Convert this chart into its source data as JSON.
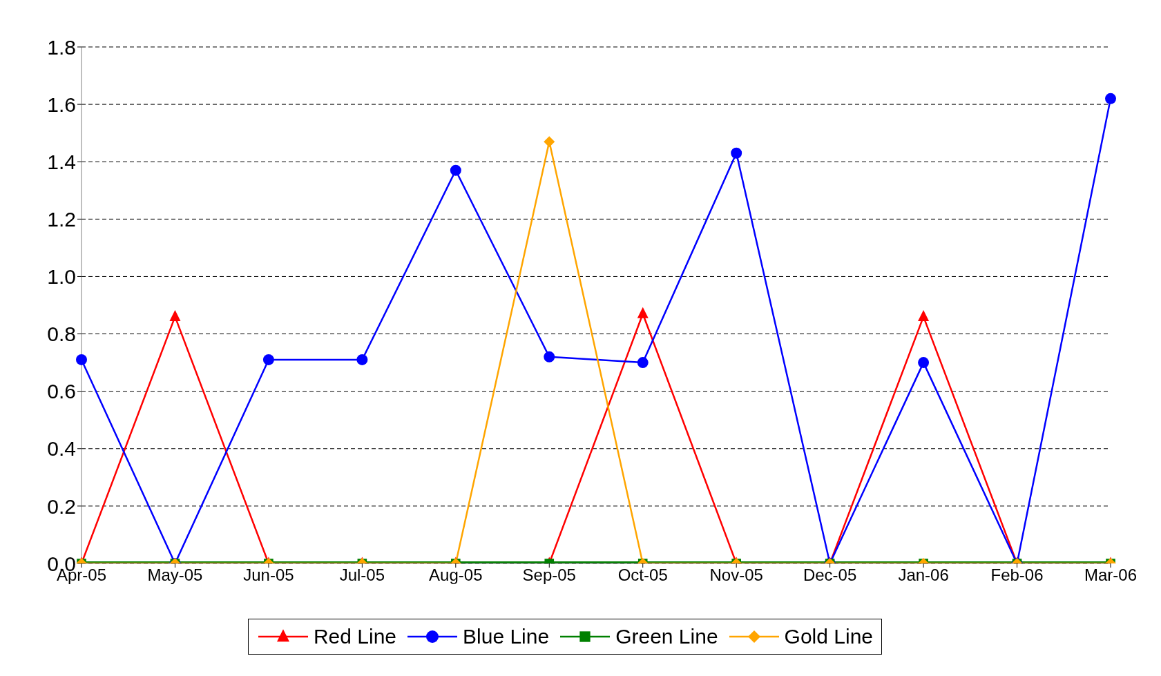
{
  "chart_data": {
    "type": "line",
    "categories": [
      "Apr-05",
      "May-05",
      "Jun-05",
      "Jul-05",
      "Aug-05",
      "Sep-05",
      "Oct-05",
      "Nov-05",
      "Dec-05",
      "Jan-06",
      "Feb-06",
      "Mar-06"
    ],
    "series": [
      {
        "name": "Red Line",
        "color": "#ff0000",
        "marker": "triangle",
        "values": [
          0,
          0.86,
          0,
          0,
          0,
          0,
          0.87,
          0,
          0,
          0.86,
          0,
          0
        ]
      },
      {
        "name": "Blue Line",
        "color": "#0000ff",
        "marker": "circle",
        "values": [
          0.71,
          0,
          0.71,
          0.71,
          1.37,
          0.72,
          0.7,
          1.43,
          0,
          0.7,
          0,
          1.62
        ]
      },
      {
        "name": "Green Line",
        "color": "#008000",
        "marker": "square",
        "values": [
          0,
          0,
          0,
          0,
          0,
          0,
          0,
          0,
          0,
          0,
          0,
          0
        ]
      },
      {
        "name": "Gold Line",
        "color": "#ffa500",
        "marker": "diamond",
        "values": [
          0,
          0,
          0,
          0,
          0,
          1.47,
          0,
          0,
          0,
          0,
          0,
          0
        ]
      }
    ],
    "ylim": [
      0,
      1.8
    ],
    "yticks": [
      {
        "value": 0,
        "label": "0.0"
      },
      {
        "value": 0.2,
        "label": "0.2"
      },
      {
        "value": 0.4,
        "label": "0.4"
      },
      {
        "value": 0.6,
        "label": "0.6"
      },
      {
        "value": 0.8,
        "label": "0.8"
      },
      {
        "value": 1.0,
        "label": "1.0"
      },
      {
        "value": 1.2,
        "label": "1.2"
      },
      {
        "value": 1.4,
        "label": "1.4"
      },
      {
        "value": 1.6,
        "label": "1.6"
      },
      {
        "value": 1.8,
        "label": "1.8"
      }
    ],
    "grid": "y",
    "legend": "bottom",
    "line_style": "solid"
  }
}
